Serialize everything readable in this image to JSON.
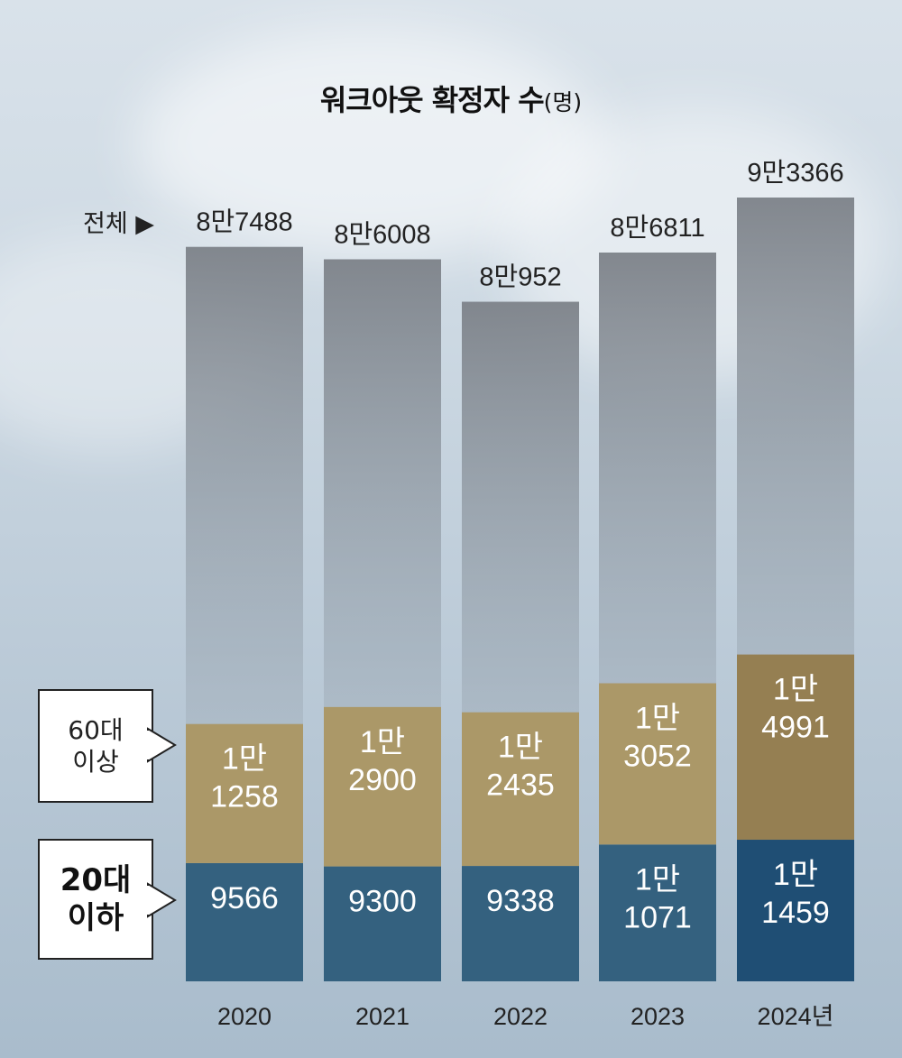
{
  "chart_data": {
    "type": "bar",
    "stacked": true,
    "title": "워크아웃 확정자 수",
    "unit": "(명)",
    "categories": [
      "2020",
      "2021",
      "2022",
      "2023",
      "2024년"
    ],
    "series": [
      {
        "name": "20대 이하",
        "values": [
          9566,
          9300,
          9338,
          11071,
          11459
        ],
        "labels": [
          [
            "9566"
          ],
          [
            "9300"
          ],
          [
            "9338"
          ],
          [
            "1만",
            "1071"
          ],
          [
            "1만",
            "1459"
          ]
        ],
        "color": "#34617f",
        "highlight_color": "#1f4e74"
      },
      {
        "name": "60대 이상",
        "values": [
          11258,
          12900,
          12435,
          13052,
          14991
        ],
        "labels": [
          [
            "1만",
            "1258"
          ],
          [
            "1만",
            "2900"
          ],
          [
            "1만",
            "2435"
          ],
          [
            "1만",
            "3052"
          ],
          [
            "1만",
            "4991"
          ]
        ],
        "color": "#ab9868",
        "highlight_color": "#957f52"
      }
    ],
    "totals": {
      "label": "전체 ▶",
      "values": [
        87488,
        86008,
        80952,
        86811,
        93366
      ],
      "labels": [
        "8만7488",
        "8만6008",
        "8만952",
        "8만6811",
        "9만3366"
      ]
    },
    "legend_labels": {
      "old": [
        "60대",
        "이상"
      ],
      "young": [
        "20대",
        "이하"
      ]
    },
    "ylim": [
      0,
      93366
    ],
    "highlight_index": 4
  }
}
